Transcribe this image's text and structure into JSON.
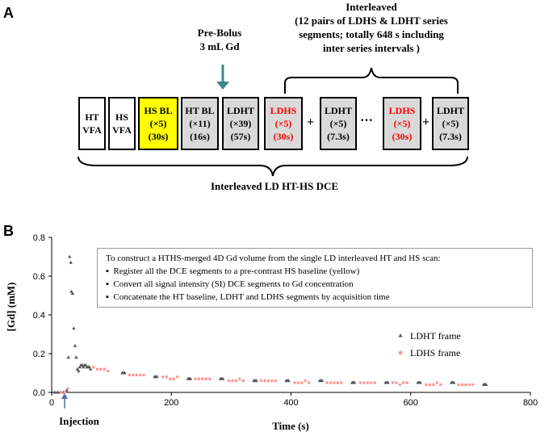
{
  "panel_a": {
    "label": "A",
    "prebolus": [
      "Pre-Bolus",
      "3  mL Gd"
    ],
    "interleaved_note": [
      "Interleaved",
      "(12 pairs of LDHS & LDHT series",
      "segments; totally 648 s including",
      "inter series intervals )"
    ],
    "boxes": [
      {
        "lines": [
          "HT",
          "VFA"
        ],
        "style": "white",
        "red": false
      },
      {
        "lines": [
          "HS",
          "VFA"
        ],
        "style": "white",
        "red": false
      },
      {
        "lines": [
          "HS BL",
          "(×5)",
          "(30s)"
        ],
        "style": "yellow",
        "red": false
      },
      {
        "lines": [
          "HT BL",
          "(×11)",
          "(16s)"
        ],
        "style": "gray",
        "red": false
      },
      {
        "lines": [
          "LDHT",
          "(×39)",
          "(57s)"
        ],
        "style": "gray",
        "red": false
      },
      {
        "lines": [
          "LDHS",
          "(×5)",
          "(30s)"
        ],
        "style": "gray",
        "red": true
      },
      {
        "lines": [
          "LDHT",
          "(×5)",
          "(7.3s)"
        ],
        "style": "gray",
        "red": false
      },
      {
        "lines": [
          "LDHS",
          "(×5)",
          "(30s)"
        ],
        "style": "gray",
        "red": true
      },
      {
        "lines": [
          "LDHT",
          "(×5)",
          "(7.3s)"
        ],
        "style": "gray",
        "red": false
      }
    ],
    "separators": [
      "+",
      "···",
      "+"
    ],
    "bottom_label": "Interleaved  LD  HT-HS  DCE"
  },
  "panel_b": {
    "label": "B",
    "injection_label": "Injection",
    "info_lines": [
      "To construct a HTHS-merged 4D Gd volume from the single LD interleaved HT and HS scan:",
      "Register all the  DCE segments to a pre-contrast HS baseline (yellow)",
      "Convert all signal intensity (SI) DCE segments to Gd concentration",
      "Concatenate the HT baseline, LDHT and LDHS segments by acquisition time"
    ]
  },
  "colors": {
    "arrow": "#3a8a8a",
    "ldht_marker": "#555555",
    "ldhs_marker": "#ff9999",
    "injection_arrow": "#4a6fb0"
  },
  "chart_data": {
    "type": "scatter",
    "xlabel": "Time (s)",
    "ylabel": "[Gd] (mM)",
    "xlim": [
      0,
      800
    ],
    "ylim": [
      0,
      0.8
    ],
    "xticks": [
      0,
      200,
      400,
      600,
      800
    ],
    "yticks": [
      0.0,
      0.2,
      0.4,
      0.6,
      0.8
    ],
    "ytick_labels": [
      "0.0",
      "0.2",
      "0.4",
      "0.6",
      "0.8"
    ],
    "legend_position": "right",
    "series": [
      {
        "name": "LDHT frame",
        "marker": "triangle",
        "points": [
          [
            5,
            0.0
          ],
          [
            10,
            0.0
          ],
          [
            15,
            0.0
          ],
          [
            20,
            0.0
          ],
          [
            25,
            0.01
          ],
          [
            28,
            0.18
          ],
          [
            30,
            0.7
          ],
          [
            32,
            0.67
          ],
          [
            33,
            0.52
          ],
          [
            35,
            0.51
          ],
          [
            37,
            0.33
          ],
          [
            39,
            0.24
          ],
          [
            41,
            0.18
          ],
          [
            43,
            0.12
          ],
          [
            45,
            0.11
          ],
          [
            47,
            0.13
          ],
          [
            49,
            0.14
          ],
          [
            51,
            0.14
          ],
          [
            53,
            0.13
          ],
          [
            55,
            0.14
          ],
          [
            57,
            0.14
          ],
          [
            59,
            0.13
          ],
          [
            61,
            0.13
          ],
          [
            63,
            0.13
          ],
          [
            65,
            0.12
          ],
          [
            118,
            0.1
          ],
          [
            120,
            0.1
          ],
          [
            122,
            0.1
          ],
          [
            172,
            0.08
          ],
          [
            174,
            0.08
          ],
          [
            176,
            0.08
          ],
          [
            228,
            0.07
          ],
          [
            230,
            0.07
          ],
          [
            232,
            0.07
          ],
          [
            282,
            0.07
          ],
          [
            284,
            0.07
          ],
          [
            286,
            0.07
          ],
          [
            338,
            0.06
          ],
          [
            340,
            0.06
          ],
          [
            342,
            0.06
          ],
          [
            392,
            0.06
          ],
          [
            394,
            0.06
          ],
          [
            396,
            0.06
          ],
          [
            448,
            0.06
          ],
          [
            450,
            0.06
          ],
          [
            452,
            0.06
          ],
          [
            502,
            0.05
          ],
          [
            504,
            0.05
          ],
          [
            506,
            0.05
          ],
          [
            558,
            0.05
          ],
          [
            560,
            0.05
          ],
          [
            562,
            0.05
          ],
          [
            612,
            0.05
          ],
          [
            614,
            0.05
          ],
          [
            616,
            0.05
          ],
          [
            668,
            0.05
          ],
          [
            670,
            0.05
          ],
          [
            672,
            0.05
          ],
          [
            722,
            0.04
          ],
          [
            724,
            0.04
          ],
          [
            726,
            0.04
          ]
        ]
      },
      {
        "name": "LDHS frame",
        "marker": "circle",
        "points": [
          [
            16,
            0.0
          ],
          [
            22,
            0.0
          ],
          [
            27,
            0.02
          ],
          [
            70,
            0.13
          ],
          [
            76,
            0.12
          ],
          [
            82,
            0.12
          ],
          [
            88,
            0.12
          ],
          [
            94,
            0.11
          ],
          [
            130,
            0.09
          ],
          [
            136,
            0.09
          ],
          [
            142,
            0.09
          ],
          [
            148,
            0.09
          ],
          [
            154,
            0.09
          ],
          [
            186,
            0.08
          ],
          [
            192,
            0.08
          ],
          [
            198,
            0.07
          ],
          [
            204,
            0.07
          ],
          [
            210,
            0.08
          ],
          [
            240,
            0.07
          ],
          [
            246,
            0.07
          ],
          [
            252,
            0.07
          ],
          [
            258,
            0.07
          ],
          [
            264,
            0.07
          ],
          [
            296,
            0.06
          ],
          [
            302,
            0.06
          ],
          [
            308,
            0.06
          ],
          [
            314,
            0.07
          ],
          [
            320,
            0.06
          ],
          [
            350,
            0.06
          ],
          [
            356,
            0.06
          ],
          [
            362,
            0.06
          ],
          [
            368,
            0.06
          ],
          [
            374,
            0.06
          ],
          [
            406,
            0.05
          ],
          [
            412,
            0.05
          ],
          [
            418,
            0.05
          ],
          [
            424,
            0.06
          ],
          [
            430,
            0.05
          ],
          [
            460,
            0.05
          ],
          [
            466,
            0.05
          ],
          [
            472,
            0.05
          ],
          [
            478,
            0.05
          ],
          [
            484,
            0.05
          ],
          [
            516,
            0.05
          ],
          [
            522,
            0.05
          ],
          [
            528,
            0.05
          ],
          [
            534,
            0.05
          ],
          [
            540,
            0.05
          ],
          [
            570,
            0.05
          ],
          [
            576,
            0.05
          ],
          [
            582,
            0.04
          ],
          [
            588,
            0.05
          ],
          [
            594,
            0.05
          ],
          [
            626,
            0.04
          ],
          [
            632,
            0.04
          ],
          [
            638,
            0.04
          ],
          [
            644,
            0.05
          ],
          [
            650,
            0.04
          ],
          [
            680,
            0.04
          ],
          [
            686,
            0.04
          ],
          [
            692,
            0.04
          ],
          [
            698,
            0.04
          ],
          [
            704,
            0.04
          ]
        ]
      }
    ]
  }
}
